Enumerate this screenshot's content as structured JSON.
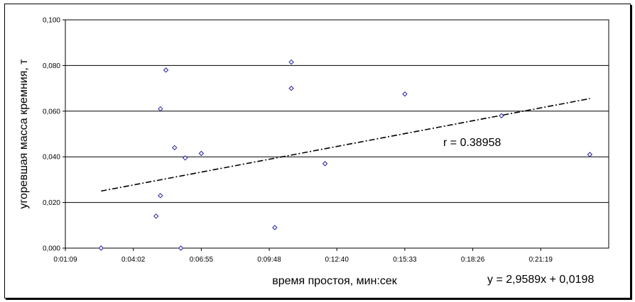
{
  "chart_data": {
    "type": "scatter",
    "title": "",
    "xlabel": "время простоя, мин:сек",
    "ylabel": "угоревшая масса кремния, т",
    "x_unit": "мин:сек",
    "x_tick_labels": [
      "0:01:09",
      "0:04:02",
      "0:06:55",
      "0:09:48",
      "0:12:40",
      "0:15:33",
      "0:18:26",
      "0:21:19"
    ],
    "y_tick_labels": [
      "0,000",
      "0,020",
      "0,040",
      "0,060",
      "0,080",
      "0,100"
    ],
    "xlim": [
      "0:01:09",
      "0:24:12"
    ],
    "ylim": [
      0,
      0.1
    ],
    "grid": "horizontal",
    "points": [
      {
        "x": "0:02:40",
        "y": 0.0
      },
      {
        "x": "0:05:00",
        "y": 0.014
      },
      {
        "x": "0:05:11",
        "y": 0.023
      },
      {
        "x": "0:05:11",
        "y": 0.061
      },
      {
        "x": "0:05:25",
        "y": 0.078
      },
      {
        "x": "0:05:47",
        "y": 0.044
      },
      {
        "x": "0:06:03",
        "y": 0.0
      },
      {
        "x": "0:06:14",
        "y": 0.0395
      },
      {
        "x": "0:06:55",
        "y": 0.0415
      },
      {
        "x": "0:10:02",
        "y": 0.009
      },
      {
        "x": "0:10:44",
        "y": 0.0815
      },
      {
        "x": "0:10:44",
        "y": 0.07
      },
      {
        "x": "0:12:10",
        "y": 0.037
      },
      {
        "x": "0:15:33",
        "y": 0.0675
      },
      {
        "x": "0:19:39",
        "y": 0.058
      },
      {
        "x": "0:23:24",
        "y": 0.041
      }
    ],
    "trendline": {
      "style": "dash-dot",
      "x_range": [
        "0:02:40",
        "0:23:24"
      ],
      "y_range": [
        0.025,
        0.0655
      ]
    },
    "annotations": {
      "r": "r = 0.38958",
      "equation": "y = 2,9589x + 0,0198"
    },
    "marker_color": "#1f1fa0"
  }
}
